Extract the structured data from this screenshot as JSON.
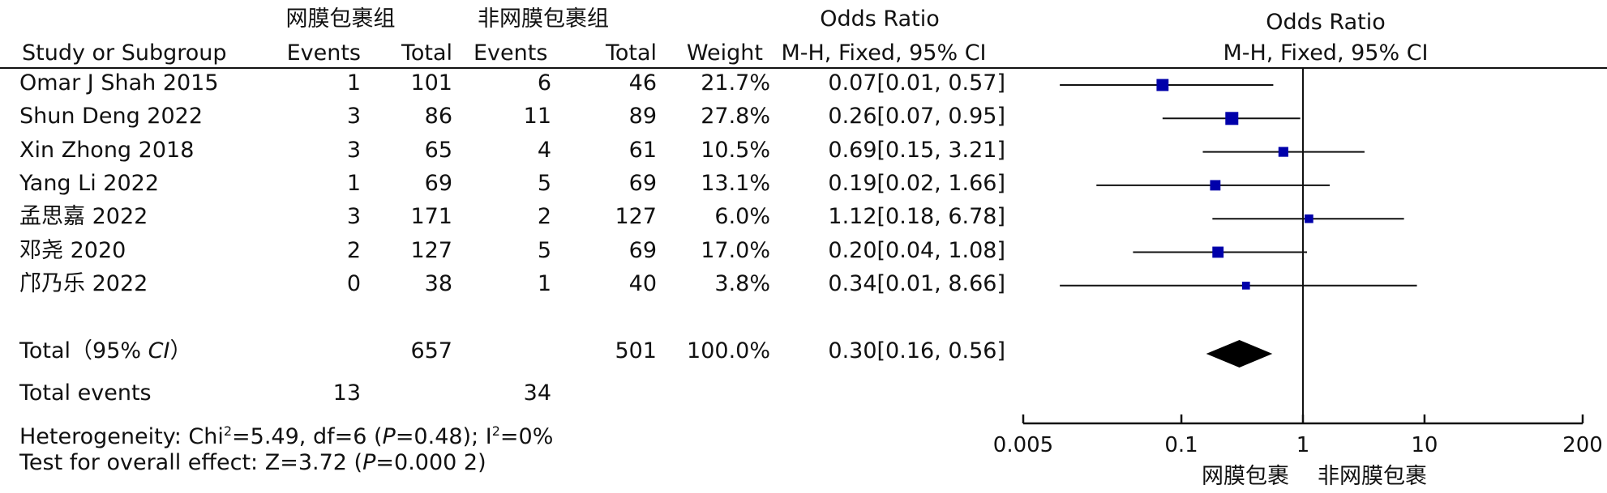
{
  "header": {
    "group1": "网膜包裹组",
    "group2": "非网膜包裹组",
    "or_title": "Odds Ratio",
    "or_method": "M-H, Fixed, 95% CI",
    "plot_title": "Odds Ratio",
    "plot_method": "M-H, Fixed, 95% CI",
    "col_study": "Study or Subgroup",
    "col_events1": "Events",
    "col_total1": "Total",
    "col_events2": "Events",
    "col_total2": "Total",
    "col_weight": "Weight"
  },
  "studies": [
    {
      "name": "Omar J Shah 2015",
      "events1": "1",
      "total1": "101",
      "events2": "6",
      "total2": "46",
      "weight": "21.7%",
      "ci_text": "0.07[0.01, 0.57]"
    },
    {
      "name": "Shun Deng 2022",
      "events1": "3",
      "total1": "86",
      "events2": "11",
      "total2": "89",
      "weight": "27.8%",
      "ci_text": "0.26[0.07, 0.95]"
    },
    {
      "name": "Xin Zhong 2018",
      "events1": "3",
      "total1": "65",
      "events2": "4",
      "total2": "61",
      "weight": "10.5%",
      "ci_text": "0.69[0.15, 3.21]"
    },
    {
      "name": "Yang Li 2022",
      "events1": "1",
      "total1": "69",
      "events2": "5",
      "total2": "69",
      "weight": "13.1%",
      "ci_text": "0.19[0.02, 1.66]"
    },
    {
      "name": "孟思嘉 2022",
      "events1": "3",
      "total1": "171",
      "events2": "2",
      "total2": "127",
      "weight": "6.0%",
      "ci_text": "1.12[0.18, 6.78]"
    },
    {
      "name": "邓尧 2020",
      "events1": "2",
      "total1": "127",
      "events2": "5",
      "total2": "69",
      "weight": "17.0%",
      "ci_text": "0.20[0.04, 1.08]"
    },
    {
      "name": "邝乃乐 2022",
      "events1": "0",
      "total1": "38",
      "events2": "1",
      "total2": "40",
      "weight": "3.8%",
      "ci_text": "0.34[0.01, 8.66]"
    }
  ],
  "total": {
    "label_prefix": "Total（95% ",
    "label_ci": "CI",
    "label_suffix": "）",
    "total1": "657",
    "total2": "501",
    "weight": "100.0%",
    "ci_text": "0.30[0.16, 0.56]"
  },
  "total_events": {
    "label": "Total events",
    "events1": "13",
    "events2": "34"
  },
  "heterogeneity": {
    "p1": "Heterogeneity: Chi",
    "sup1": "2",
    "p2": "=5.49, df=6 (",
    "p_italic": "P",
    "p3": "=0.48); I",
    "sup2": "2",
    "p4": "=0%"
  },
  "overall": {
    "p1": "Test for overall effect: Z=3.72 (",
    "p_italic": "P",
    "p2": "=0.000 2)"
  },
  "axis_footer": {
    "left": "网膜包裹",
    "right": "非网膜包裹"
  },
  "chart_data": {
    "type": "forest",
    "scale": "log",
    "xlim": [
      0.005,
      200
    ],
    "ticks": [
      0.005,
      0.1,
      1,
      10,
      200
    ],
    "tick_labels": [
      "0.005",
      "0.1",
      "1",
      "10",
      "200"
    ],
    "reference_line": 1,
    "marker_color": "#0000aa",
    "studies": [
      {
        "or": 0.07,
        "lower": 0.01,
        "upper": 0.57,
        "weight": 21.7
      },
      {
        "or": 0.26,
        "lower": 0.07,
        "upper": 0.95,
        "weight": 27.8
      },
      {
        "or": 0.69,
        "lower": 0.15,
        "upper": 3.21,
        "weight": 10.5
      },
      {
        "or": 0.19,
        "lower": 0.02,
        "upper": 1.66,
        "weight": 13.1
      },
      {
        "or": 1.12,
        "lower": 0.18,
        "upper": 6.78,
        "weight": 6.0
      },
      {
        "or": 0.2,
        "lower": 0.04,
        "upper": 1.08,
        "weight": 17.0
      },
      {
        "or": 0.34,
        "lower": 0.01,
        "upper": 8.66,
        "weight": 3.8
      }
    ],
    "pooled": {
      "or": 0.3,
      "lower": 0.16,
      "upper": 0.56
    }
  }
}
